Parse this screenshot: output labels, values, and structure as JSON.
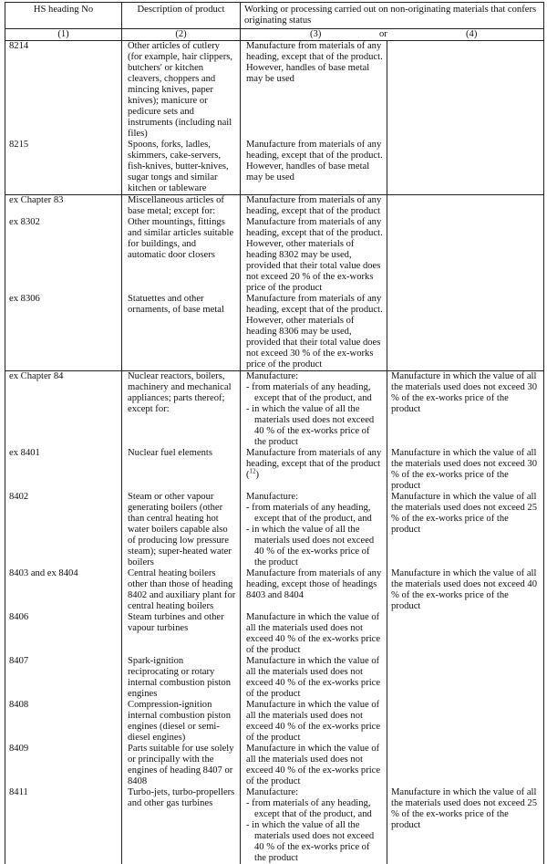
{
  "header": {
    "col1": "HS heading No",
    "col2": "Description of product",
    "col34": "Working or processing carried out on non-originating materials that confers originating status",
    "num1": "(1)",
    "num2": "(2)",
    "num3": "(3)",
    "or": "or",
    "num4": "(4)"
  },
  "groups": [
    [
      {
        "hs": "8214",
        "desc": "Other articles of cutlery (for example, hair clippers, butchers' or kitchen cleavers, choppers and mincing knives, paper knives); manicure or pedicure sets and instruments (including nail files)",
        "rule3": "Manufacture from materials of any heading, except that of the product. However, handles of base metal may be used",
        "rule4": ""
      },
      {
        "hs": "8215",
        "desc": "Spoons, forks, ladles, skimmers, cake-servers, fish-knives, butter-knives, sugar tongs and similar kitchen or tableware",
        "rule3": "Manufacture from materials of any heading, except that of the product. However, handles of base metal may be used",
        "rule4": ""
      }
    ],
    [
      {
        "hs": "ex Chapter 83",
        "desc": "Miscellaneous articles of base metal; except for:",
        "rule3": "Manufacture from materials of any heading, except that of the product",
        "rule4": ""
      },
      {
        "hs": "ex 8302",
        "desc": "Other mountings, fittings and similar articles suitable for buildings, and automatic door closers",
        "rule3": "Manufacture from materials of any heading, except that of the product. However, other materials of heading 8302 may be used, provided that their total value does not exceed 20 % of the ex-works price of the product",
        "rule4": ""
      },
      {
        "hs": "ex 8306",
        "desc": "Statuettes and other ornaments, of base metal",
        "rule3": "Manufacture from materials of any heading, except that of the product. However, other materials of heading 8306 may be used, provided that their total value does not exceed 30 % of the ex-works price of the product",
        "rule4": ""
      }
    ],
    [
      {
        "hs": "ex Chapter 84",
        "desc": "Nuclear reactors, boilers, machinery and mechanical appliances; parts thereof; except for:",
        "rule3_intro": "Manufacture:",
        "rule3_items": [
          "- from materials of any heading, except that of the product, and",
          "- in which the value of all the materials used does not exceed 40 % of the ex-works price of the product"
        ],
        "rule4": "Manufacture in which the value of all the materials used does not exceed 30 % of the ex-works price of the product"
      },
      {
        "hs": "ex 8401",
        "desc": "Nuclear fuel elements",
        "rule3": "Manufacture from materials of any heading, except that of the product (",
        "rule3_note": "12",
        "rule3_end": ")",
        "rule4": "Manufacture in which the value of all the materials used does not exceed 30 % of the ex-works price of the product"
      },
      {
        "hs": "8402",
        "desc": "Steam or other vapour generating boilers (other than central heating hot water boilers capable also of producing low pressure steam); super-heated water boilers",
        "rule3_intro": "Manufacture:",
        "rule3_items": [
          "- from materials of any heading, except that of the product, and",
          "- in which the value of all the materials used does not exceed 40 % of the ex-works price of the product"
        ],
        "rule4": "Manufacture in which the value of all the materials used does not exceed 25 % of the ex-works price of the product"
      },
      {
        "hs": "8403 and ex 8404",
        "desc": "Central heating boilers other than those of heading 8402 and auxiliary plant for central heating boilers",
        "rule3": "Manufacture from materials of any heading, except those of headings 8403 and 8404",
        "rule4": "Manufacture in which the value of all the materials used does not exceed 40 % of the ex-works price of the product"
      },
      {
        "hs": "8406",
        "desc": "Steam turbines and other vapour turbines",
        "rule3": "Manufacture in which the value of all the materials used does not exceed 40 % of the ex-works price of the product",
        "rule4": ""
      },
      {
        "hs": "8407",
        "desc": "Spark-ignition reciprocating or rotary internal combustion piston engines",
        "rule3": "Manufacture in which the value of all the materials used does not exceed 40 % of the ex-works price of the product",
        "rule4": ""
      },
      {
        "hs": "8408",
        "desc": "Compression-ignition internal combustion piston engines (diesel or semi-diesel engines)",
        "rule3": "Manufacture in which the value of all the materials used does not exceed 40 % of the ex-works price of the product",
        "rule4": ""
      },
      {
        "hs": "8409",
        "desc": "Parts suitable for use solely or principally with the engines of heading 8407 or 8408",
        "rule3": "Manufacture in which the value of all the materials used does not exceed 40 % of the ex-works price of the product",
        "rule4": ""
      },
      {
        "hs": "8411",
        "desc": "Turbo-jets, turbo-propellers and other gas turbines",
        "rule3_intro": "Manufacture:",
        "rule3_items": [
          "- from materials of any heading, except that of the product, and",
          "- in which the value of all the materials used does not exceed 40 % of the ex-works price of the product"
        ],
        "rule4": "Manufacture in which the value of all the materials used does not exceed 25 % of the ex-works price of the product"
      }
    ]
  ]
}
